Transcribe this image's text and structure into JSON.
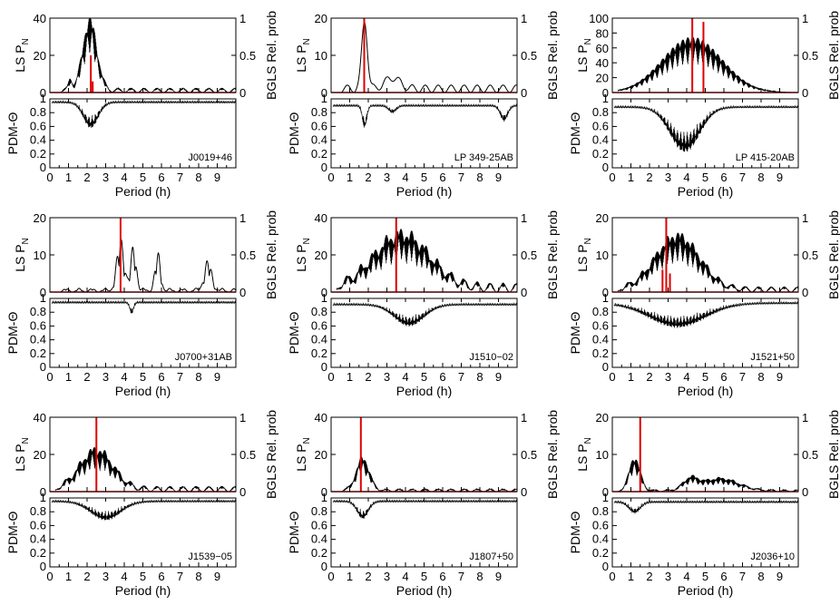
{
  "figure": {
    "x_label": "Period (h)",
    "ls_label": "LS P",
    "ls_label_sub": "N",
    "bgls_label": "BGLS Rel. prob",
    "pdm_label": "PDM-Θ",
    "x_ticks": [
      0,
      1,
      2,
      3,
      4,
      5,
      6,
      7,
      8,
      9
    ],
    "bgls_ticks": [
      0,
      0.5,
      1
    ],
    "pdm_ticks": [
      0,
      0.2,
      0.4,
      0.6,
      0.8,
      1
    ]
  },
  "chart_data": [
    {
      "type": "line",
      "star": "J0019+46",
      "xlim": [
        0,
        10
      ],
      "ls_ylim": [
        0,
        40
      ],
      "ls_ticks": [
        0,
        20,
        40
      ],
      "bgls_ylim": [
        0,
        1
      ],
      "pdm_ylim": [
        0,
        1
      ],
      "ls_peaks": [
        {
          "x": 1.1,
          "y": 6,
          "w": 0.1
        },
        {
          "x": 2.15,
          "y": 39,
          "w": 0.38
        }
      ],
      "ls_baseline": 2.5,
      "ls_oscillation": "dense",
      "bgls_peaks": [
        {
          "x": 2.2,
          "y": 0.5
        },
        {
          "x": 2.3,
          "y": 0.15
        }
      ],
      "pdm_dips": [
        {
          "x": 2.2,
          "depth": 0.6,
          "w": 0.4
        }
      ],
      "pdm_base": 0.97
    },
    {
      "type": "line",
      "star": "LP 349-25AB",
      "xlim": [
        0,
        10
      ],
      "ls_ylim": [
        0,
        20
      ],
      "ls_ticks": [
        0,
        10,
        20
      ],
      "bgls_ylim": [
        0,
        1
      ],
      "pdm_ylim": [
        0,
        1
      ],
      "ls_peaks": [
        {
          "x": 1.8,
          "y": 18.5,
          "w": 0.15
        },
        {
          "x": 3.3,
          "y": 3,
          "w": 0.4
        }
      ],
      "ls_baseline": 2,
      "ls_oscillation": "smooth",
      "bgls_peaks": [
        {
          "x": 1.78,
          "y": 1
        }
      ],
      "pdm_dips": [
        {
          "x": 1.8,
          "depth": 0.6,
          "w": 0.12
        },
        {
          "x": 3.3,
          "depth": 0.82,
          "w": 0.2
        },
        {
          "x": 9.3,
          "depth": 0.7,
          "w": 0.2
        }
      ],
      "pdm_base": 0.92
    },
    {
      "type": "line",
      "star": "LP 415-20AB",
      "xlim": [
        0,
        10
      ],
      "ls_ylim": [
        0,
        100
      ],
      "ls_ticks": [
        0,
        20,
        40,
        60,
        80,
        100
      ],
      "bgls_ylim": [
        0,
        1
      ],
      "pdm_ylim": [
        0,
        1
      ],
      "ls_peaks": [
        {
          "x": 4.3,
          "y": 75,
          "w": 1.6
        }
      ],
      "ls_baseline": 0,
      "ls_oscillation": "dense",
      "bgls_peaks": [
        {
          "x": 4.3,
          "y": 1
        },
        {
          "x": 4.9,
          "y": 0.95
        }
      ],
      "pdm_dips": [
        {
          "x": 3.9,
          "depth": 0.25,
          "w": 0.8
        }
      ],
      "pdm_base": 0.9
    },
    {
      "type": "line",
      "star": "J0700+31AB",
      "xlim": [
        0,
        10
      ],
      "ls_ylim": [
        0,
        20
      ],
      "ls_ticks": [
        0,
        10,
        20
      ],
      "bgls_ylim": [
        0,
        1
      ],
      "pdm_ylim": [
        0,
        1
      ],
      "ls_peaks": [
        {
          "x": 3.8,
          "y": 14,
          "w": 0.2
        },
        {
          "x": 4.5,
          "y": 12,
          "w": 0.15
        },
        {
          "x": 5.8,
          "y": 10,
          "w": 0.15
        },
        {
          "x": 8.5,
          "y": 8,
          "w": 0.2
        }
      ],
      "ls_baseline": 1,
      "ls_oscillation": "sparse",
      "bgls_peaks": [
        {
          "x": 3.8,
          "y": 1
        }
      ],
      "pdm_dips": [
        {
          "x": 4.4,
          "depth": 0.8,
          "w": 0.1
        }
      ],
      "pdm_base": 0.96
    },
    {
      "type": "line",
      "star": "J1510−02",
      "xlim": [
        0,
        10
      ],
      "ls_ylim": [
        0,
        40
      ],
      "ls_ticks": [
        0,
        20,
        40
      ],
      "bgls_ylim": [
        0,
        1
      ],
      "pdm_ylim": [
        0,
        1
      ],
      "ls_peaks": [
        {
          "x": 3.8,
          "y": 30,
          "w": 1.5
        }
      ],
      "ls_baseline": 5,
      "ls_oscillation": "dense",
      "bgls_peaks": [
        {
          "x": 3.5,
          "y": 1
        }
      ],
      "pdm_dips": [
        {
          "x": 4.2,
          "depth": 0.62,
          "w": 0.8
        }
      ],
      "pdm_base": 0.93
    },
    {
      "type": "line",
      "star": "J1521+50",
      "xlim": [
        0,
        10
      ],
      "ls_ylim": [
        0,
        20
      ],
      "ls_ticks": [
        0,
        10,
        20
      ],
      "bgls_ylim": [
        0,
        1
      ],
      "pdm_ylim": [
        0,
        1
      ],
      "ls_peaks": [
        {
          "x": 3.5,
          "y": 15,
          "w": 1.2
        }
      ],
      "ls_baseline": 1.5,
      "ls_oscillation": "dense",
      "bgls_peaks": [
        {
          "x": 2.9,
          "y": 1
        },
        {
          "x": 2.7,
          "y": 0.3
        },
        {
          "x": 3.1,
          "y": 0.25
        }
      ],
      "pdm_dips": [
        {
          "x": 3.5,
          "depth": 0.6,
          "w": 1.5
        }
      ],
      "pdm_base": 0.95
    },
    {
      "type": "line",
      "star": "J1539−05",
      "xlim": [
        0,
        10
      ],
      "ls_ylim": [
        0,
        40
      ],
      "ls_ticks": [
        0,
        20,
        40
      ],
      "bgls_ylim": [
        0,
        1
      ],
      "pdm_ylim": [
        0,
        1
      ],
      "ls_peaks": [
        {
          "x": 2.5,
          "y": 22,
          "w": 0.9
        }
      ],
      "ls_baseline": 3,
      "ls_oscillation": "dense",
      "bgls_peaks": [
        {
          "x": 2.5,
          "y": 1
        }
      ],
      "pdm_dips": [
        {
          "x": 3.0,
          "depth": 0.7,
          "w": 0.8
        }
      ],
      "pdm_base": 0.97
    },
    {
      "type": "line",
      "star": "J1807+50",
      "xlim": [
        0,
        10
      ],
      "ls_ylim": [
        0,
        40
      ],
      "ls_ticks": [
        0,
        20,
        40
      ],
      "bgls_ylim": [
        0,
        1
      ],
      "pdm_ylim": [
        0,
        1
      ],
      "ls_peaks": [
        {
          "x": 1.7,
          "y": 18,
          "w": 0.35
        }
      ],
      "ls_baseline": 1.5,
      "ls_oscillation": "dense",
      "bgls_peaks": [
        {
          "x": 1.6,
          "y": 1
        }
      ],
      "pdm_dips": [
        {
          "x": 1.7,
          "depth": 0.72,
          "w": 0.3
        }
      ],
      "pdm_base": 0.97
    },
    {
      "type": "line",
      "star": "J2036+10",
      "xlim": [
        0,
        10
      ],
      "ls_ylim": [
        0,
        20
      ],
      "ls_ticks": [
        0,
        10,
        20
      ],
      "bgls_ylim": [
        0,
        1
      ],
      "pdm_ylim": [
        0,
        1
      ],
      "ls_peaks": [
        {
          "x": 1.2,
          "y": 9,
          "w": 0.3
        },
        {
          "x": 4.2,
          "y": 3,
          "w": 0.4
        },
        {
          "x": 5.8,
          "y": 3.5,
          "w": 1.0
        }
      ],
      "ls_baseline": 0.5,
      "ls_oscillation": "dense",
      "bgls_peaks": [
        {
          "x": 1.5,
          "y": 1
        }
      ],
      "pdm_dips": [
        {
          "x": 1.2,
          "depth": 0.8,
          "w": 0.3
        }
      ],
      "pdm_base": 0.96
    }
  ]
}
